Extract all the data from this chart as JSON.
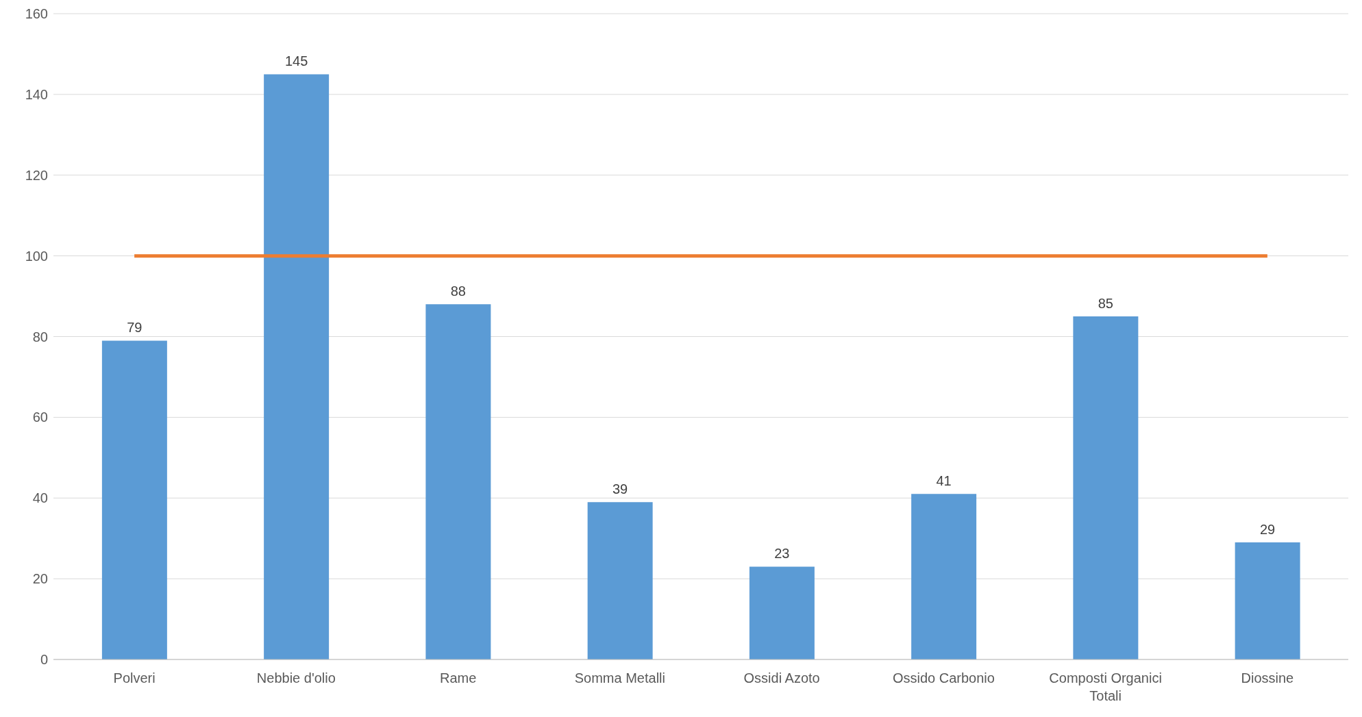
{
  "chart_data": {
    "type": "bar",
    "categories": [
      "Polveri",
      "Nebbie d'olio",
      "Rame",
      "Somma Metalli",
      "Ossidi Azoto",
      "Ossido Carbonio",
      "Composti Organici Totali",
      "Diossine"
    ],
    "series": [
      {
        "color": "#5b9bd5",
        "values": [
          79,
          145,
          88,
          39,
          23,
          41,
          85,
          29
        ],
        "value_labels": [
          "79",
          "145",
          "88",
          "39",
          "23",
          "41",
          "85",
          "29"
        ]
      },
      {
        "type": "line",
        "color": "#ed7d31",
        "values": [
          100,
          100,
          100,
          100,
          100,
          100,
          100,
          100
        ]
      }
    ],
    "ylim": [
      0,
      160
    ],
    "yticks": [
      0,
      20,
      40,
      60,
      80,
      100,
      120,
      140,
      160
    ],
    "grid": "y",
    "legend": false,
    "marker": "none"
  }
}
